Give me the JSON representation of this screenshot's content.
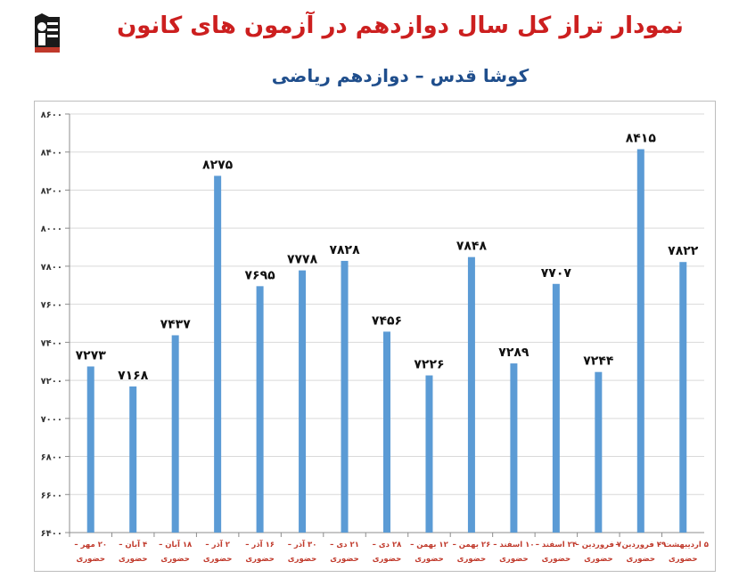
{
  "header": {
    "title": "نمودار تراز کل سال دوازدهم در آزمون های کانون",
    "subtitle": "کوشا قدس – دوازدهم ریاضی",
    "logo_icon": "kanoon-logo-icon",
    "title_color": "#cc1f1f",
    "subtitle_color": "#1f4e8c"
  },
  "chart_data": {
    "type": "bar",
    "categories": [
      "۲۰ مهر –\nحضوری",
      "۴ آبان –\nحضوری",
      "۱۸ آبان –\nحضوری",
      "۲ آذر –\nحضوری",
      "۱۶ آذر –\nحضوری",
      "۳۰ آذر –\nحضوری",
      "۲۱ دی –\nحضوری",
      "۲۸ دی –\nحضوری",
      "۱۲ بهمن –\nحضوری",
      "۲۶ بهمن –\nحضوری",
      "۱۰ اسفند –\nحضوری",
      "۲۴ اسفند –\nحضوری",
      "۷ فروردین –\nحضوری",
      "۲۹ فروردین –\nحضوری",
      "۵ اردیبهشت –\nحضوری"
    ],
    "values": [
      7273,
      7168,
      7437,
      8275,
      7695,
      7778,
      7828,
      7456,
      7226,
      7848,
      7289,
      7707,
      7244,
      8415,
      7822
    ],
    "value_labels": [
      "۷۲۷۳",
      "۷۱۶۸",
      "۷۴۳۷",
      "۸۲۷۵",
      "۷۶۹۵",
      "۷۷۷۸",
      "۷۸۲۸",
      "۷۴۵۶",
      "۷۲۲۶",
      "۷۸۴۸",
      "۷۲۸۹",
      "۷۷۰۷",
      "۷۲۴۴",
      "۸۴۱۵",
      "۷۸۲۲"
    ],
    "y_ticks": [
      6400,
      6600,
      6800,
      7000,
      7200,
      7400,
      7600,
      7800,
      8000,
      8200,
      8400,
      8600
    ],
    "y_tick_labels": [
      "۶۴۰۰",
      "۶۶۰۰",
      "۶۸۰۰",
      "۷۰۰۰",
      "۷۲۰۰",
      "۷۴۰۰",
      "۷۶۰۰",
      "۷۸۰۰",
      "۸۰۰۰",
      "۸۲۰۰",
      "۸۴۰۰",
      "۸۶۰۰"
    ],
    "ylim": [
      6400,
      8600
    ],
    "grid": true,
    "bar_color": "#5b9bd5",
    "gridline_color": "#d9d9d9",
    "category_label_color": "#c0392b",
    "value_label_color": "#111111",
    "xlabel": "",
    "ylabel": ""
  }
}
